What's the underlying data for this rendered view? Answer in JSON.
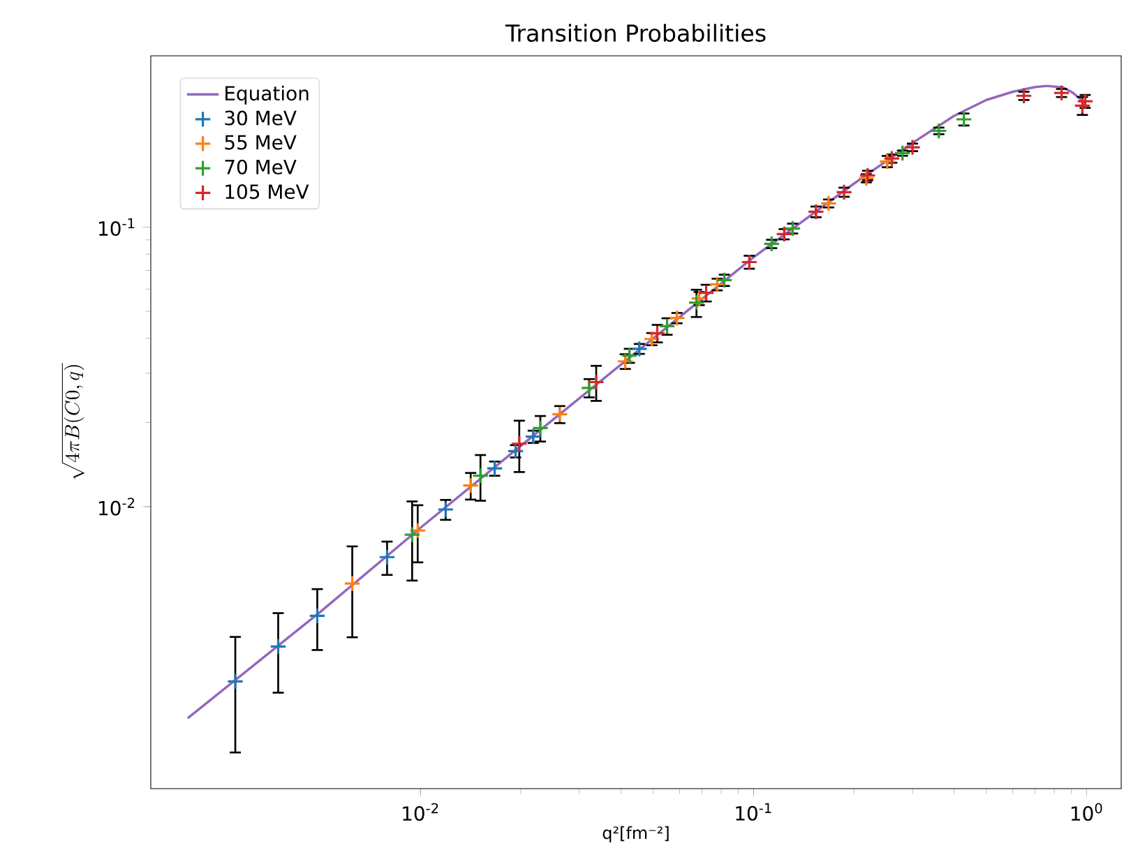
{
  "chart_data": {
    "type": "scatter",
    "title": "Transition Probabilities",
    "xlabel": "q²[fm⁻²]",
    "ylabel": "\\sqrt{4\\pi B(C0,q)}",
    "log": "xy",
    "grid": false,
    "legend": "top left",
    "xlim": [
      0.00155,
      1.27
    ],
    "ylim": [
      0.00098,
      0.41
    ],
    "xticks": [
      {
        "value": 0.01,
        "label": "10$^{-2}$"
      },
      {
        "value": 0.1,
        "label": "10$^{-1}$"
      },
      {
        "value": 1,
        "label": "10$^{0}$"
      }
    ],
    "yticks": [
      {
        "value": 0.01,
        "label": "10$^{-2}$"
      },
      {
        "value": 0.1,
        "label": "10$^{-1}$"
      }
    ],
    "series": [
      {
        "name": "Equation",
        "type": "line",
        "line_style": "solid",
        "color": "#9467bd",
        "x": [
          0.002,
          0.005,
          0.01,
          0.02,
          0.05,
          0.1,
          0.2,
          0.3,
          0.4,
          0.5,
          0.6,
          0.7,
          0.76,
          0.85,
          0.9,
          0.95,
          1.0
        ],
        "values": [
          0.00175,
          0.0042,
          0.0084,
          0.0165,
          0.04,
          0.078,
          0.143,
          0.2,
          0.25,
          0.285,
          0.305,
          0.317,
          0.32,
          0.316,
          0.305,
          0.29,
          0.27
        ]
      },
      {
        "name": "30 MeV",
        "marker": "cross",
        "color": "#1f77b4",
        "x": [
          0.00278,
          0.00374,
          0.0049,
          0.00794,
          0.0119,
          0.0167,
          0.0193,
          0.0218,
          0.0454
        ],
        "values": [
          0.00237,
          0.00316,
          0.00407,
          0.0066,
          0.00977,
          0.0137,
          0.0158,
          0.0178,
          0.0367
        ],
        "errors": [
          0.00105,
          0.001,
          0.001,
          0.0009,
          0.0008,
          0.0008,
          0.0008,
          0.0009,
          0.0015
        ]
      },
      {
        "name": "55 MeV",
        "marker": "cross",
        "color": "#ff7f0e",
        "x": [
          0.00624,
          0.00981,
          0.01415,
          0.0262,
          0.0412,
          0.0495,
          0.0589,
          0.0687,
          0.0778,
          0.168,
          0.218,
          0.252
        ],
        "values": [
          0.00531,
          0.00822,
          0.0119,
          0.0214,
          0.0331,
          0.0398,
          0.0473,
          0.0556,
          0.0624,
          0.1216,
          0.1496,
          0.1718
        ],
        "errors": [
          0.0019,
          0.0019,
          0.0013,
          0.0015,
          0.002,
          0.002,
          0.002,
          0.003,
          0.003,
          0.004,
          0.005,
          0.008
        ]
      },
      {
        "name": "70 MeV",
        "marker": "cross",
        "color": "#2ca02c",
        "x": [
          0.00944,
          0.01514,
          0.0229,
          0.0321,
          0.0424,
          0.055,
          0.0674,
          0.0817,
          0.1133,
          0.131,
          0.28,
          0.36,
          0.428
        ],
        "values": [
          0.00794,
          0.0129,
          0.0191,
          0.0266,
          0.0347,
          0.0442,
          0.0537,
          0.0646,
          0.0871,
          0.0989,
          0.184,
          0.221,
          0.243
        ],
        "errors": [
          0.0025,
          0.0024,
          0.002,
          0.002,
          0.002,
          0.003,
          0.006,
          0.003,
          0.003,
          0.004,
          0.004,
          0.006,
          0.012
        ]
      },
      {
        "name": "105 MeV",
        "marker": "cross",
        "color": "#d62728",
        "x": [
          0.0198,
          0.0337,
          0.0514,
          0.0721,
          0.0971,
          0.1236,
          0.154,
          0.187,
          0.22,
          0.26,
          0.3,
          0.648,
          0.841,
          0.971,
          0.99
        ],
        "values": [
          0.0168,
          0.0279,
          0.0417,
          0.0582,
          0.075,
          0.0944,
          0.1135,
          0.1334,
          0.1531,
          0.176,
          0.193,
          0.295,
          0.302,
          0.272,
          0.282
        ],
        "errors": [
          0.0035,
          0.004,
          0.003,
          0.004,
          0.004,
          0.004,
          0.005,
          0.005,
          0.006,
          0.006,
          0.006,
          0.01,
          0.01,
          0.02,
          0.015
        ]
      }
    ]
  }
}
